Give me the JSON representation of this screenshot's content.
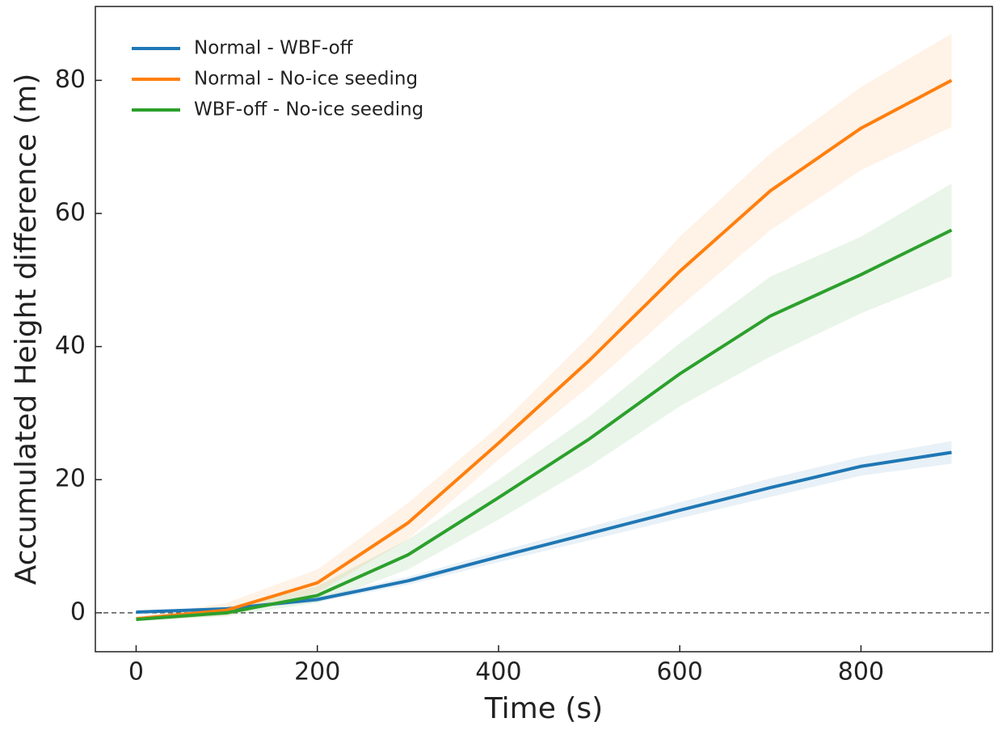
{
  "chart_data": {
    "type": "line",
    "x_label": "Time (s)",
    "y_label": "Accumulated Height difference (m)",
    "x": [
      0,
      100,
      200,
      300,
      400,
      500,
      600,
      700,
      800,
      900
    ],
    "series": [
      {
        "name": "Normal - WBF-off",
        "color": "#1f77b4",
        "values": [
          0.1,
          0.6,
          2,
          4.8,
          8.4,
          11.9,
          15.4,
          18.8,
          22,
          24.1
        ],
        "lower": [
          0,
          0.4,
          1.6,
          4.2,
          7.6,
          10.9,
          14.2,
          17.4,
          20.6,
          22.4
        ],
        "upper": [
          0.2,
          0.8,
          2.4,
          5.4,
          9.2,
          12.9,
          16.6,
          20.2,
          23.4,
          25.8
        ]
      },
      {
        "name": "Normal - No-ice seeding",
        "color": "#ff7f0e",
        "values": [
          -0.9,
          0.4,
          4.5,
          13.5,
          25.5,
          37.9,
          51.3,
          63.4,
          72.8,
          80
        ],
        "lower": [
          -1.2,
          -0.5,
          3,
          11,
          23,
          34,
          46,
          57.5,
          66.5,
          73
        ],
        "upper": [
          -0.6,
          1.5,
          6.5,
          16.5,
          28,
          41.5,
          56.5,
          69,
          79,
          87
        ]
      },
      {
        "name": "WBF-off - No-ice seeding",
        "color": "#2ca02c",
        "values": [
          -1,
          0,
          2.6,
          8.7,
          17.3,
          26.1,
          35.9,
          44.6,
          50.8,
          57.5
        ],
        "lower": [
          -1.2,
          -0.5,
          1.5,
          6.5,
          14,
          22,
          31,
          38.5,
          45,
          50.5
        ],
        "upper": [
          -0.8,
          0.5,
          4,
          11,
          20,
          29.5,
          40.5,
          50.5,
          56.5,
          64.5
        ]
      }
    ],
    "reference_line": 0,
    "xlim": [
      -45,
      945
    ],
    "ylim": [
      -5.85,
      91.1
    ],
    "xticks": [
      0,
      200,
      400,
      600,
      800
    ],
    "yticks": [
      0,
      20,
      40,
      60,
      80
    ],
    "legend": "upper left"
  }
}
